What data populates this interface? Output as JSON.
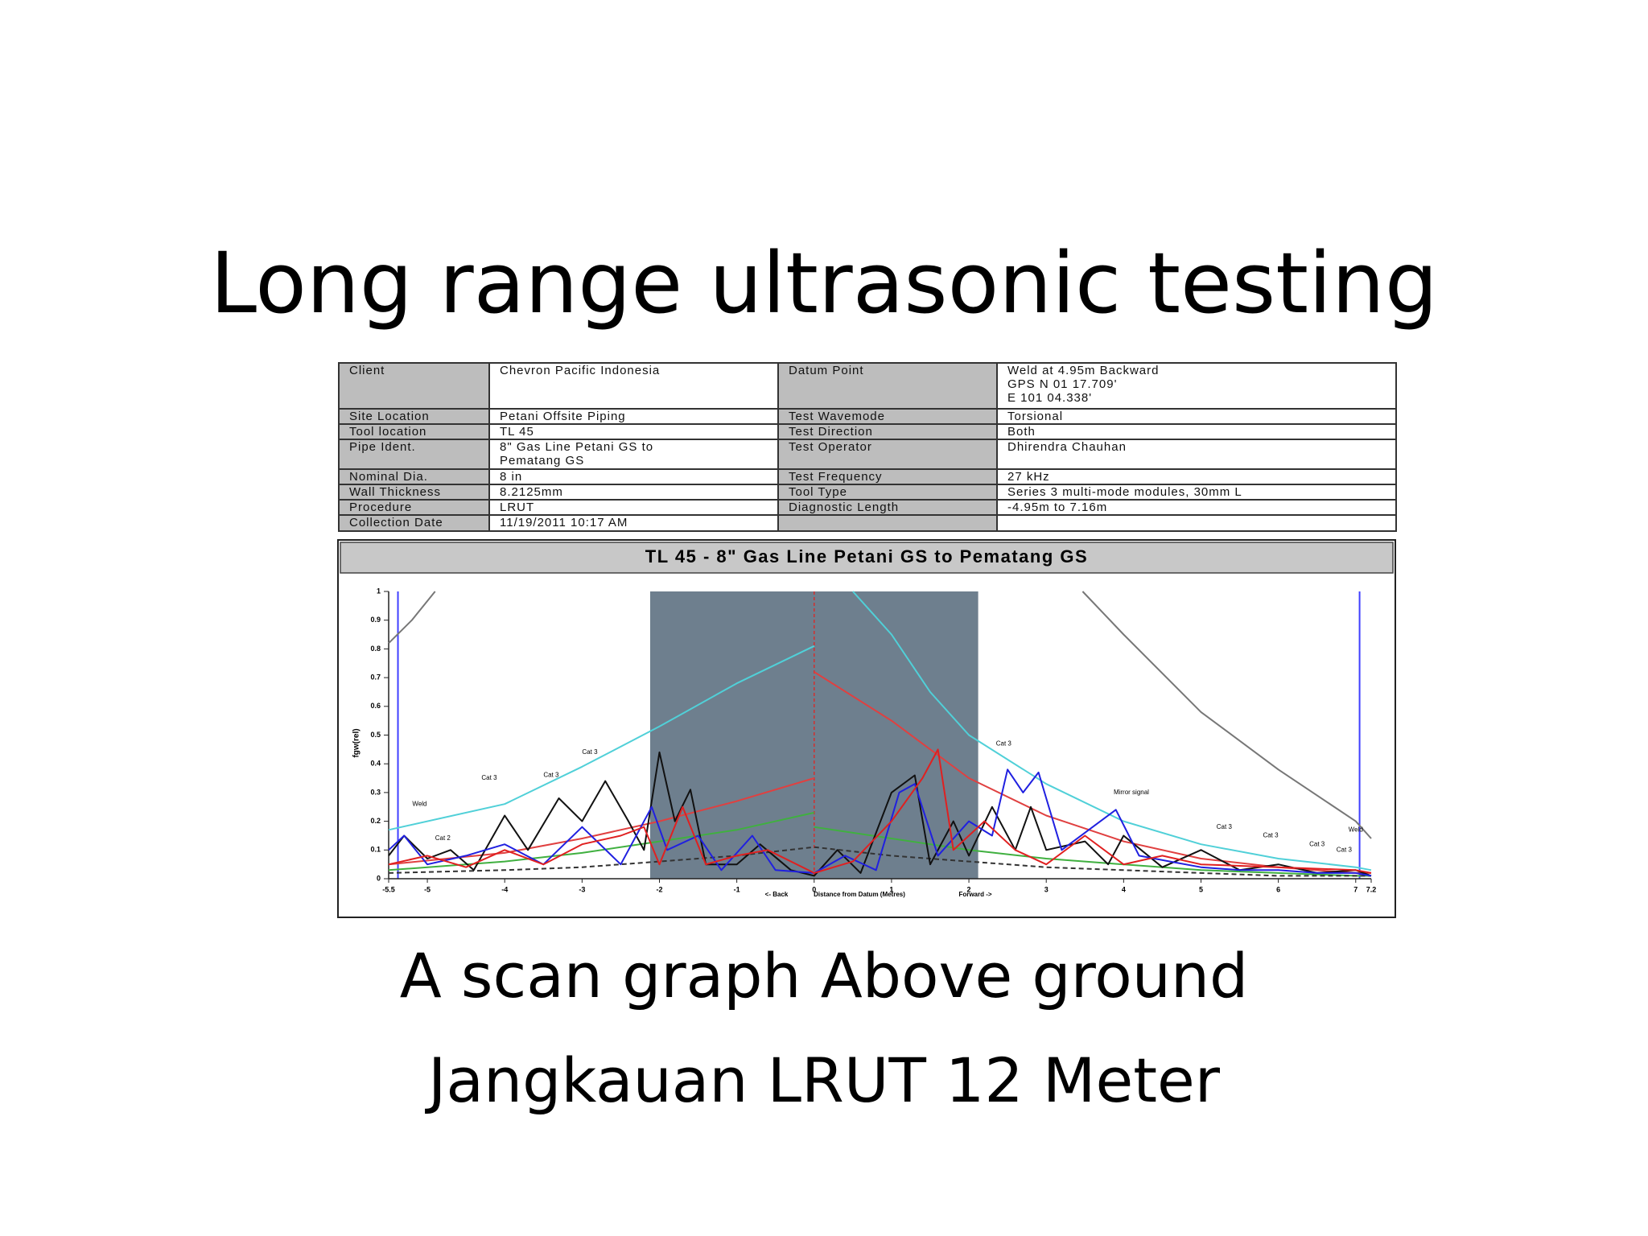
{
  "title": "Long range ultrasonic testing",
  "table": {
    "rows": [
      [
        "Client",
        "Chevron Pacific Indonesia",
        "Datum Point",
        "Weld at 4.95m  Backward\nGPS N 01 17.709'\n     E 101 04.338'"
      ],
      [
        "Site Location",
        "Petani Offsite Piping",
        "Test Wavemode",
        "Torsional"
      ],
      [
        "Tool location",
        "TL 45",
        "Test Direction",
        "Both"
      ],
      [
        "Pipe Ident.",
        "8\" Gas Line Petani GS to\nPematang GS",
        "Test Operator",
        "Dhirendra Chauhan"
      ],
      [
        "Nominal Dia.",
        "8 in",
        "Test Frequency",
        "27 kHz"
      ],
      [
        "Wall Thickness",
        "8.2125mm",
        "Tool Type",
        "Series 3 multi-mode modules, 30mm L"
      ],
      [
        "Procedure",
        "LRUT",
        "Diagnostic Length",
        "-4.95m to 7.16m"
      ],
      [
        "Collection Date",
        "11/19/2011 10:17 AM"
      ]
    ]
  },
  "chart_data": {
    "type": "line",
    "title": "TL 45 - 8\" Gas Line Petani GS to Pematang GS",
    "y_label": "fgw(rel)",
    "x_labels": [
      "<- Back",
      "Distance from Datum (Metres)",
      "Forward ->"
    ],
    "xlim": [
      -5.5,
      7.2
    ],
    "ylim": [
      0,
      1
    ],
    "xticks": [
      -5.5,
      -5,
      -4,
      -3,
      -2,
      -1,
      0,
      1,
      2,
      3,
      4,
      5,
      6,
      7,
      7.2
    ],
    "yticks": [
      0,
      0.1,
      0.2,
      0.3,
      0.4,
      0.5,
      0.6,
      0.7,
      0.8,
      0.9,
      1
    ],
    "gate": [
      -2.12,
      2.12
    ],
    "gate_color": "#6e7f8e",
    "markers": [
      -5.38,
      7.05
    ],
    "marker_color": "#4040ff",
    "datum": 0,
    "datum_color": "#d03030",
    "annotations": [
      "Weld",
      "Cat 2",
      "Cat 3",
      "Cat 3",
      "Cat 3",
      "Cat 3",
      "Mirror signal",
      "Cat 3",
      "Cat 3",
      "Cat 3",
      "Cat 3",
      "Weld"
    ],
    "series": [
      {
        "color": "#50d0d8",
        "x": [
          -5.5,
          -4,
          -3,
          -2,
          -1,
          0
        ],
        "values": [
          0.17,
          0.26,
          0.39,
          0.53,
          0.68,
          0.81
        ]
      },
      {
        "color": "#50d0d8",
        "x": [
          0.5,
          1,
          1.5,
          2,
          3,
          4,
          5,
          6,
          7,
          7.2
        ],
        "values": [
          1,
          0.85,
          0.65,
          0.5,
          0.33,
          0.2,
          0.12,
          0.07,
          0.04,
          0.03
        ]
      },
      {
        "color": "#e04040",
        "x": [
          -5.5,
          -4,
          -3,
          -2,
          -1,
          0
        ],
        "values": [
          0.05,
          0.09,
          0.14,
          0.2,
          0.27,
          0.35
        ]
      },
      {
        "color": "#e04040",
        "x": [
          0,
          1,
          2,
          3,
          4,
          5,
          6,
          7,
          7.2
        ],
        "values": [
          0.72,
          0.55,
          0.35,
          0.22,
          0.13,
          0.07,
          0.04,
          0.02,
          0.02
        ]
      },
      {
        "color": "#40b040",
        "x": [
          -5.5,
          -4,
          -3,
          -2,
          -1,
          0
        ],
        "values": [
          0.03,
          0.06,
          0.09,
          0.13,
          0.17,
          0.23
        ]
      },
      {
        "color": "#40b040",
        "x": [
          0,
          1,
          2,
          3,
          4,
          5,
          6,
          7,
          7.2
        ],
        "values": [
          0.18,
          0.14,
          0.1,
          0.07,
          0.05,
          0.03,
          0.02,
          0.01,
          0.01
        ]
      },
      {
        "color": "#333333",
        "dash": true,
        "x": [
          -5.5,
          -4,
          -3,
          -2,
          -1,
          0
        ],
        "values": [
          0.02,
          0.03,
          0.04,
          0.06,
          0.08,
          0.11
        ]
      },
      {
        "color": "#333333",
        "dash": true,
        "x": [
          0,
          1,
          2,
          3,
          4,
          5,
          6,
          7,
          7.2
        ],
        "values": [
          0.11,
          0.08,
          0.06,
          0.04,
          0.03,
          0.02,
          0.01,
          0.01,
          0.01
        ]
      },
      {
        "color": "#777777",
        "x": [
          -5.5,
          -5.2,
          -4.9
        ],
        "values": [
          0.82,
          0.9,
          1
        ]
      },
      {
        "color": "#777777",
        "x": [
          3.47,
          4,
          5,
          6,
          7,
          7.2
        ],
        "values": [
          1,
          0.85,
          0.58,
          0.38,
          0.2,
          0.14
        ]
      },
      {
        "color": "#111111",
        "x": [
          -5.5,
          -5.3,
          -5,
          -4.7,
          -4.4,
          -4,
          -3.7,
          -3.3,
          -3,
          -2.7,
          -2.4,
          -2.2,
          -2,
          -1.8,
          -1.6,
          -1.4,
          -1,
          -0.7,
          -0.3,
          0,
          0.3,
          0.6,
          1,
          1.3,
          1.5,
          1.8,
          2,
          2.3,
          2.6,
          2.8,
          3,
          3.5,
          3.8,
          4,
          4.5,
          5,
          5.5,
          6,
          6.5,
          7,
          7.2
        ],
        "values": [
          0.08,
          0.15,
          0.07,
          0.1,
          0.03,
          0.22,
          0.1,
          0.28,
          0.2,
          0.34,
          0.2,
          0.1,
          0.44,
          0.2,
          0.31,
          0.05,
          0.05,
          0.12,
          0.03,
          0.01,
          0.1,
          0.02,
          0.3,
          0.36,
          0.05,
          0.2,
          0.08,
          0.25,
          0.1,
          0.25,
          0.1,
          0.13,
          0.05,
          0.15,
          0.04,
          0.1,
          0.03,
          0.05,
          0.02,
          0.03,
          0.01
        ]
      },
      {
        "color": "#2020e0",
        "x": [
          -5.5,
          -5.3,
          -5,
          -4.5,
          -4,
          -3.5,
          -3,
          -2.5,
          -2.1,
          -1.9,
          -1.5,
          -1.2,
          -0.8,
          -0.5,
          0,
          0.4,
          0.8,
          1.1,
          1.3,
          1.6,
          2,
          2.3,
          2.5,
          2.7,
          2.9,
          3.2,
          3.6,
          3.9,
          4.2,
          4.6,
          5,
          5.5,
          6,
          6.5,
          7,
          7.2
        ],
        "values": [
          0.1,
          0.15,
          0.05,
          0.08,
          0.12,
          0.05,
          0.18,
          0.05,
          0.25,
          0.1,
          0.15,
          0.03,
          0.15,
          0.03,
          0.02,
          0.08,
          0.03,
          0.3,
          0.33,
          0.08,
          0.2,
          0.15,
          0.38,
          0.3,
          0.37,
          0.1,
          0.18,
          0.24,
          0.08,
          0.06,
          0.04,
          0.03,
          0.03,
          0.02,
          0.02,
          0.01
        ]
      },
      {
        "color": "#e02020",
        "x": [
          -5.5,
          -5,
          -4.5,
          -4,
          -3.5,
          -3,
          -2.5,
          -2.2,
          -2,
          -1.7,
          -1.4,
          -1,
          -0.6,
          0,
          0.5,
          1,
          1.4,
          1.6,
          1.8,
          2.2,
          2.6,
          3,
          3.5,
          4,
          4.5,
          5,
          6,
          7,
          7.2
        ],
        "values": [
          0.05,
          0.08,
          0.04,
          0.1,
          0.05,
          0.12,
          0.15,
          0.18,
          0.05,
          0.25,
          0.05,
          0.08,
          0.1,
          0.02,
          0.06,
          0.2,
          0.35,
          0.45,
          0.1,
          0.2,
          0.1,
          0.05,
          0.15,
          0.05,
          0.08,
          0.05,
          0.04,
          0.03,
          0.02
        ]
      }
    ]
  },
  "captions": [
    "A scan graph Above ground",
    "Jangkauan LRUT 12 Meter"
  ]
}
